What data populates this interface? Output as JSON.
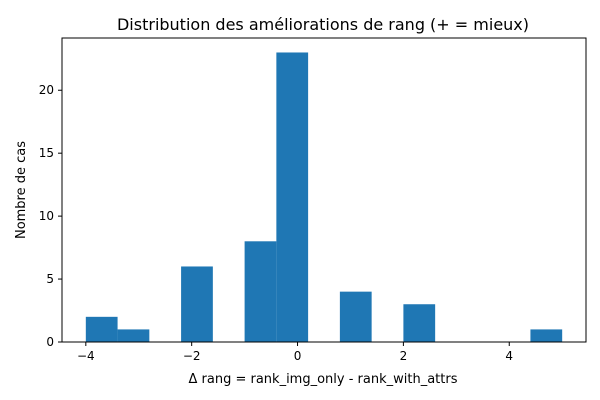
{
  "chart_data": {
    "type": "bar",
    "title": "Distribution des améliorations de rang (+ = mieux)",
    "xlabel": "Δ rang = rank_img_only - rank_with_attrs",
    "ylabel": "Nombre de cas",
    "bar_color": "#1f77b4",
    "bins": [
      {
        "start": -4.0,
        "end": -3.4,
        "count": 2
      },
      {
        "start": -3.4,
        "end": -2.8,
        "count": 1
      },
      {
        "start": -2.8,
        "end": -2.2,
        "count": 0
      },
      {
        "start": -2.2,
        "end": -1.6,
        "count": 6
      },
      {
        "start": -1.6,
        "end": -1.0,
        "count": 0
      },
      {
        "start": -1.0,
        "end": -0.4,
        "count": 8
      },
      {
        "start": -0.4,
        "end": 0.2,
        "count": 23
      },
      {
        "start": 0.2,
        "end": 0.8,
        "count": 0
      },
      {
        "start": 0.8,
        "end": 1.4,
        "count": 4
      },
      {
        "start": 1.4,
        "end": 2.0,
        "count": 0
      },
      {
        "start": 2.0,
        "end": 2.6,
        "count": 3
      },
      {
        "start": 2.6,
        "end": 3.2,
        "count": 0
      },
      {
        "start": 3.2,
        "end": 3.8,
        "count": 0
      },
      {
        "start": 3.8,
        "end": 4.4,
        "count": 0
      },
      {
        "start": 4.4,
        "end": 5.0,
        "count": 1
      }
    ],
    "xlim": [
      -4.45,
      5.45
    ],
    "ylim": [
      0,
      24.15
    ],
    "x_ticks": [
      {
        "value": -4,
        "label": "−4"
      },
      {
        "value": -2,
        "label": "−2"
      },
      {
        "value": 0,
        "label": "0"
      },
      {
        "value": 2,
        "label": "2"
      },
      {
        "value": 4,
        "label": "4"
      }
    ],
    "y_ticks": [
      {
        "value": 0,
        "label": "0"
      },
      {
        "value": 5,
        "label": "5"
      },
      {
        "value": 10,
        "label": "10"
      },
      {
        "value": 15,
        "label": "15"
      },
      {
        "value": 20,
        "label": "20"
      }
    ],
    "grid": false,
    "legend": "none"
  }
}
